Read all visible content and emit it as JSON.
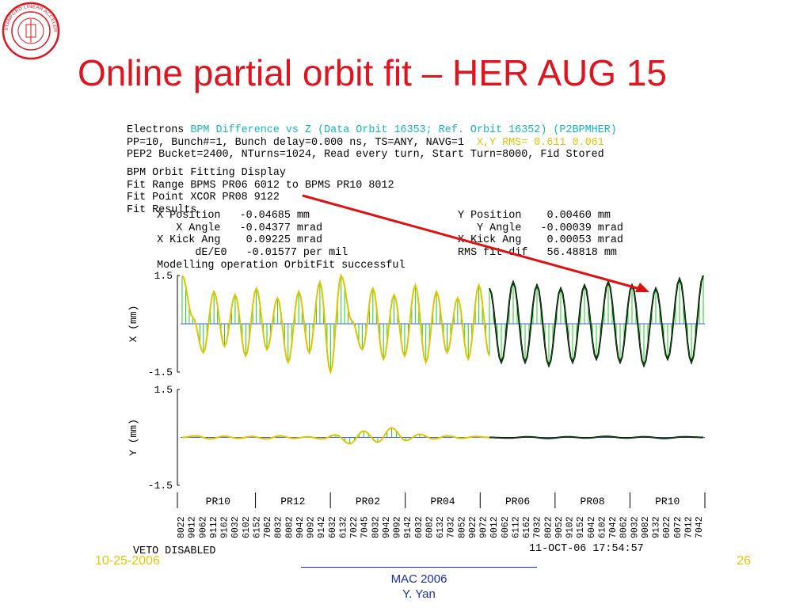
{
  "slide": {
    "title": "Online partial orbit fit – HER AUG 15",
    "date": "10-25-2006",
    "page_number": "26",
    "footer_line1": "MAC 2006",
    "footer_line2": "Y. Yan",
    "logo_text": "STANFORD LINEAR ACCELERATOR CENTER"
  },
  "display": {
    "header": [
      {
        "parts": [
          {
            "t": "Electrons ",
            "c": "k"
          },
          {
            "t": "BPM Difference vs Z (Data Orbit 16353; Ref. Orbit 16352) (P2BPMHER)",
            "c": "c"
          }
        ]
      },
      {
        "parts": [
          {
            "t": "PP=10, Bunch#=1, Bunch delay=0.000 ns, TS=ANY, NAVG=1  ",
            "c": "k"
          },
          {
            "t": "X,Y RMS= 0.611 0.061",
            "c": "y"
          }
        ]
      },
      {
        "parts": [
          {
            "t": "PEP2 Bucket=2400, NTurns=1024, Read every turn, Start Turn=8000, Fid Stored",
            "c": "k"
          }
        ]
      }
    ],
    "fit_lines": [
      "BPM Orbit Fitting Display",
      "Fit Range BPMS PR06 6012 to BPMS PR10 8012",
      "Fit Point XCOR PR08 9122",
      "Fit Results"
    ],
    "results_left": [
      "   X Position   -0.04685 mm",
      "      X Angle   -0.04377 mrad",
      "   X Kick Ang    0.09225 mrad",
      "         dE/E0   -0.01577 per mil",
      "   Modelling operation OrbitFit successful"
    ],
    "results_right": [
      "Y Position    0.00460 mm",
      "   Y Angle   -0.00039 mrad",
      "X Kick Ang    0.00053 mrad",
      "RMS fit dif   56.48818 mm"
    ],
    "veto": "VETO DISABLED",
    "timestamp": "11-OCT-06 17:54:57",
    "colors": {
      "fit": "#000000",
      "data": "#e0c400",
      "bars": "#22cc22",
      "baseline": "#4455dd",
      "arrow": "#e01010",
      "cyan": "#12b6c4"
    }
  },
  "chart_data": [
    {
      "type": "line",
      "title": "",
      "xlabel": "",
      "ylabel": "X (mm)",
      "ylim": [
        -1.5,
        1.5
      ],
      "yticks": [
        "1.5",
        "-1.5"
      ],
      "series": [
        {
          "values": [
            1.5,
            0.2,
            -0.9,
            1.0,
            -0.7,
            0.9,
            -1.0,
            1.1,
            -0.8,
            0.8,
            -1.2,
            1.0,
            -0.9,
            1.3,
            -1.5,
            1.5,
            0.1,
            -0.8,
            1.1,
            -1.1,
            0.9,
            -1.0,
            1.2,
            -1.2,
            1.0,
            -0.9,
            0.8,
            -1.1,
            1.2,
            -1.0
          ]
        },
        {
          "values": [
            1.1,
            -1.2,
            1.3,
            -1.2,
            1.2,
            -1.3,
            1.1,
            -1.2,
            1.2,
            -1.1,
            1.3,
            -1.2,
            1.2,
            -1.3,
            1.1,
            -1.1,
            1.4,
            -1.2,
            1.5
          ]
        }
      ]
    },
    {
      "type": "line",
      "title": "",
      "xlabel": "",
      "ylabel": "Y (mm)",
      "ylim": [
        -1.5,
        1.5
      ],
      "yticks": [
        "1.5",
        "-1.5"
      ],
      "series": [
        {
          "values": [
            0.0,
            0.05,
            -0.05,
            0.04,
            -0.03,
            0.03,
            -0.05,
            0.05,
            -0.03,
            0.02,
            -0.05,
            0.08,
            -0.2,
            0.2,
            -0.15,
            0.3,
            -0.1,
            0.1,
            -0.05,
            0.05,
            -0.03,
            0.03,
            0.0
          ]
        },
        {
          "values": [
            0.0,
            -0.02,
            0.02,
            -0.03,
            0.02,
            -0.02,
            0.03,
            -0.02,
            0.02,
            -0.03,
            0.02,
            0.0
          ]
        }
      ]
    }
  ],
  "regions": [
    "PR10",
    "PR12",
    "PR02",
    "PR04",
    "PR06",
    "PR08",
    "PR10"
  ],
  "bpm_labels": [
    "8022",
    "9012",
    "9062",
    "9112",
    "9162",
    "6032",
    "6102",
    "6152",
    "7062",
    "8032",
    "8082",
    "9042",
    "9092",
    "9142",
    "6032",
    "6132",
    "7022",
    "7045",
    "8032",
    "9042",
    "9092",
    "9142",
    "6032",
    "6082",
    "6132",
    "7032",
    "8052",
    "9022",
    "9072",
    "6012",
    "6062",
    "6112",
    "6162",
    "7032",
    "8022",
    "9052",
    "9102",
    "9152",
    "6042",
    "6102",
    "7042",
    "8062",
    "9032",
    "9082",
    "9132",
    "6022",
    "6072",
    "7012",
    "7042"
  ]
}
